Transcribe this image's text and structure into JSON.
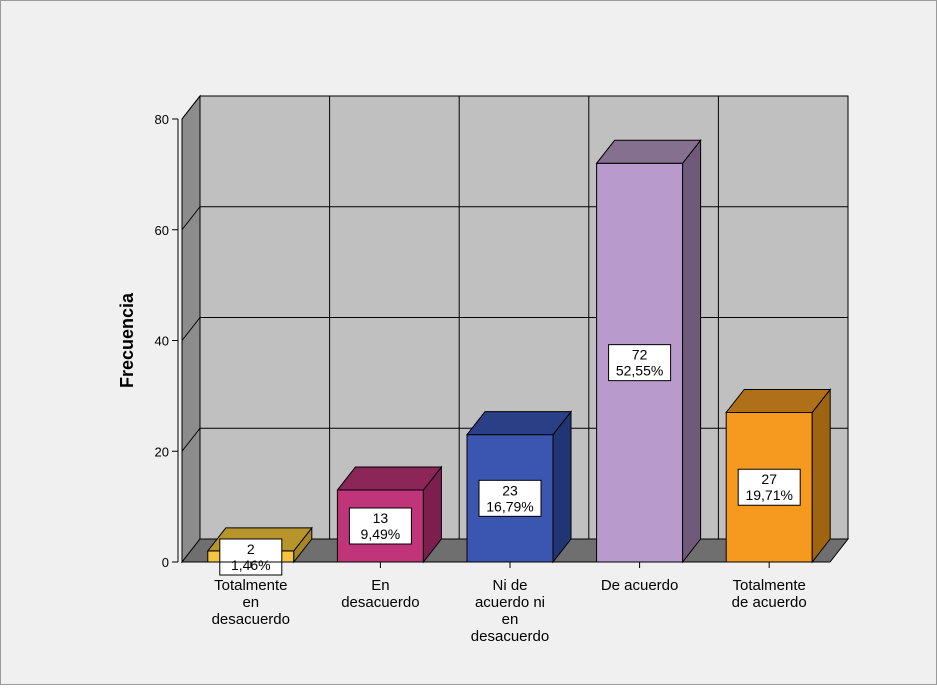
{
  "chart_data": {
    "type": "bar",
    "title": "",
    "xlabel": "",
    "ylabel": "Frecuencia",
    "ylim": [
      0,
      80
    ],
    "yticks": [
      0,
      20,
      40,
      60,
      80
    ],
    "grid": true,
    "three_d": true,
    "categories": [
      [
        "Totalmente",
        "en",
        "desacuerdo"
      ],
      [
        "En",
        "desacuerdo"
      ],
      [
        "Ni de",
        "acuerdo ni",
        "en",
        "desacuerdo"
      ],
      [
        "De acuerdo"
      ],
      [
        "Totalmente",
        "de acuerdo"
      ]
    ],
    "values": [
      2,
      13,
      23,
      72,
      27
    ],
    "percent_labels": [
      "1,46%",
      "9,49%",
      "16,79%",
      "52,55%",
      "19,71%"
    ],
    "colors": [
      "#f5c542",
      "#c0357a",
      "#3a56b0",
      "#b99acc",
      "#f59a1f"
    ],
    "side_colors": [
      "#a78626",
      "#7d1f4e",
      "#213473",
      "#6f5a7c",
      "#9f6410"
    ],
    "top_colors": [
      "#b8952b",
      "#8c2558",
      "#2a3f86",
      "#85718f",
      "#b0701a"
    ],
    "background": "#f0f0f0",
    "plot_wall": "#c0c0c0"
  }
}
